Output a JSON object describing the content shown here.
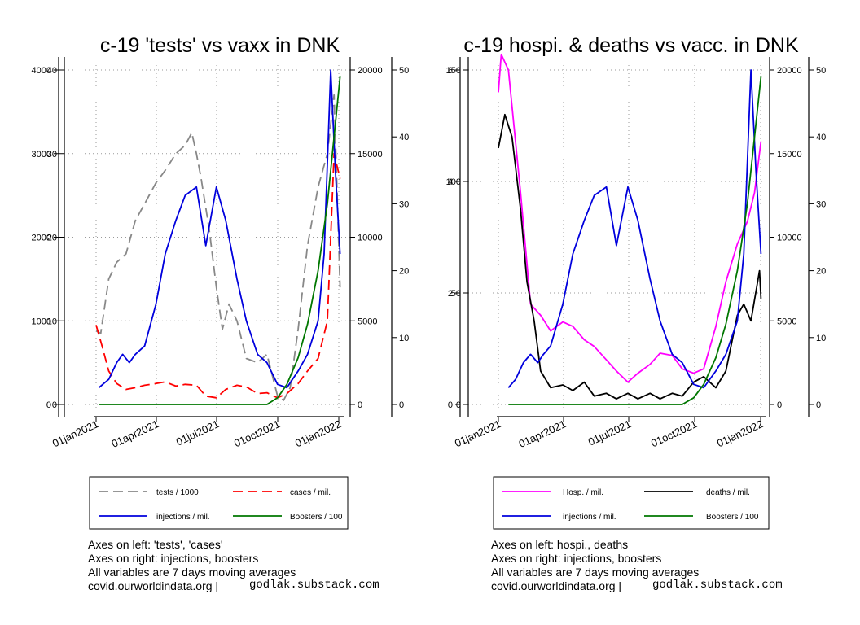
{
  "chart_data": [
    {
      "type": "line",
      "title": "c-19 'tests' vs vaxx in DNK",
      "x_ticks": [
        "01jan2021",
        "01apr2021",
        "01jul2021",
        "01oct2021",
        "01jan2022"
      ],
      "x_range": [
        "2021-01-01",
        "2022-01-06"
      ],
      "grid": true,
      "legend_placement": "bottom",
      "axes": {
        "axis1": {
          "side": "left-outer",
          "range": [
            0,
            4000
          ],
          "ticks": [
            "0",
            "1000",
            "2000",
            "3000",
            "4000"
          ]
        },
        "axis2": {
          "side": "left-inner",
          "range": [
            0,
            40
          ],
          "ticks": [
            "0",
            "10",
            "20",
            "30",
            "40"
          ]
        },
        "axis3": {
          "side": "right-inner",
          "range": [
            0,
            20000
          ],
          "ticks": [
            "0",
            "5000",
            "10000",
            "15000",
            "20000"
          ]
        },
        "axis4": {
          "side": "right-outer",
          "range": [
            0,
            50
          ],
          "ticks": [
            "0",
            "10",
            "20",
            "30",
            "40",
            "50"
          ]
        }
      },
      "series": [
        {
          "name": "tests / 1000",
          "color": "#888888",
          "dash": "dashed",
          "axis": "axis1",
          "x": [
            "2021-01-01",
            "2021-01-08",
            "2021-01-20",
            "2021-02-01",
            "2021-02-15",
            "2021-03-01",
            "2021-03-15",
            "2021-04-01",
            "2021-04-15",
            "2021-05-01",
            "2021-05-15",
            "2021-05-25",
            "2021-06-01",
            "2021-06-08",
            "2021-06-20",
            "2021-07-01",
            "2021-07-10",
            "2021-07-20",
            "2021-08-01",
            "2021-08-15",
            "2021-09-01",
            "2021-09-15",
            "2021-10-01",
            "2021-10-10",
            "2021-10-20",
            "2021-11-01",
            "2021-11-15",
            "2021-12-01",
            "2021-12-15",
            "2021-12-25",
            "2022-01-03"
          ],
          "y": [
            880,
            850,
            1500,
            1700,
            1800,
            2200,
            2400,
            2650,
            2800,
            3000,
            3100,
            3250,
            3000,
            2700,
            2100,
            1400,
            900,
            1200,
            1000,
            550,
            500,
            600,
            100,
            50,
            200,
            900,
            1900,
            2600,
            3000,
            3700,
            1400
          ]
        },
        {
          "name": "cases / mil.",
          "color": "#ff0000",
          "dash": "dashed",
          "axis": "axis2",
          "x": [
            "2021-01-01",
            "2021-01-10",
            "2021-01-20",
            "2021-02-01",
            "2021-02-15",
            "2021-03-01",
            "2021-03-15",
            "2021-04-01",
            "2021-04-15",
            "2021-05-01",
            "2021-05-15",
            "2021-06-01",
            "2021-06-15",
            "2021-07-01",
            "2021-07-15",
            "2021-08-01",
            "2021-08-15",
            "2021-09-01",
            "2021-09-15",
            "2021-10-01",
            "2021-10-15",
            "2021-11-01",
            "2021-11-15",
            "2021-12-01",
            "2021-12-15",
            "2021-12-25",
            "2022-01-03"
          ],
          "y": [
            9.5,
            7,
            4,
            2.5,
            1.8,
            2,
            2.3,
            2.5,
            2.7,
            2.2,
            2.4,
            2.3,
            1,
            0.8,
            1.8,
            2.3,
            2.1,
            1.3,
            1.4,
            0.8,
            1.3,
            2.5,
            4,
            5.5,
            10,
            30,
            27
          ]
        },
        {
          "name": "injections / mil.",
          "color": "#0000dd",
          "dash": "solid",
          "axis": "axis3",
          "x": [
            "2021-01-05",
            "2021-01-20",
            "2021-02-01",
            "2021-02-10",
            "2021-02-20",
            "2021-03-01",
            "2021-03-15",
            "2021-04-01",
            "2021-04-15",
            "2021-05-01",
            "2021-05-15",
            "2021-06-01",
            "2021-06-15",
            "2021-07-01",
            "2021-07-15",
            "2021-08-01",
            "2021-08-15",
            "2021-09-01",
            "2021-09-15",
            "2021-10-01",
            "2021-10-15",
            "2021-11-01",
            "2021-11-15",
            "2021-12-01",
            "2021-12-10",
            "2021-12-20",
            "2021-12-27",
            "2022-01-03"
          ],
          "y": [
            1000,
            1500,
            2500,
            3000,
            2500,
            3000,
            3500,
            6000,
            9000,
            11000,
            12500,
            13000,
            9500,
            13000,
            11000,
            7500,
            5000,
            3000,
            2500,
            1200,
            1000,
            2000,
            3000,
            5000,
            9000,
            20000,
            14000,
            9000
          ]
        },
        {
          "name": "Boosters / 100",
          "color": "#007700",
          "dash": "solid",
          "axis": "axis4",
          "x": [
            "2021-01-05",
            "2021-09-15",
            "2021-10-01",
            "2021-10-15",
            "2021-11-01",
            "2021-11-15",
            "2021-12-01",
            "2021-12-15",
            "2021-12-25",
            "2022-01-03"
          ],
          "y": [
            0,
            0,
            1,
            3,
            7,
            12,
            20,
            30,
            40,
            49
          ]
        }
      ]
    },
    {
      "type": "line",
      "title": "c-19 hospi. & deaths vs vacc. in DNK",
      "x_ticks": [
        "01jan2021",
        "01apr2021",
        "01jul2021",
        "01oct2021",
        "01jan2022"
      ],
      "x_range": [
        "2021-01-01",
        "2022-01-06"
      ],
      "grid": true,
      "legend_placement": "bottom",
      "axes": {
        "axis1": {
          "side": "left-outer",
          "range": [
            0,
            6
          ],
          "ticks": [
            "0",
            "2",
            "4",
            "6"
          ]
        },
        "axis2": {
          "side": "left-inner",
          "range": [
            0,
            150
          ],
          "ticks": [
            "0",
            "50",
            "100",
            "150"
          ]
        },
        "axis3": {
          "side": "right-inner",
          "range": [
            0,
            20000
          ],
          "ticks": [
            "0",
            "5000",
            "10000",
            "15000",
            "20000"
          ]
        },
        "axis4": {
          "side": "right-outer",
          "range": [
            0,
            50
          ],
          "ticks": [
            "0",
            "10",
            "20",
            "30",
            "40",
            "50"
          ]
        }
      },
      "series": [
        {
          "name": "Hosp. / mil.",
          "color": "#ff00ff",
          "dash": "solid",
          "axis": "axis2",
          "x": [
            "2021-01-01",
            "2021-01-05",
            "2021-01-15",
            "2021-02-01",
            "2021-02-15",
            "2021-03-01",
            "2021-03-15",
            "2021-04-01",
            "2021-04-15",
            "2021-05-01",
            "2021-05-15",
            "2021-06-01",
            "2021-06-15",
            "2021-07-01",
            "2021-07-15",
            "2021-08-01",
            "2021-08-15",
            "2021-09-01",
            "2021-09-15",
            "2021-10-01",
            "2021-10-15",
            "2021-11-01",
            "2021-11-15",
            "2021-12-01",
            "2021-12-15",
            "2021-12-25",
            "2022-01-03"
          ],
          "y": [
            140,
            157,
            150,
            95,
            45,
            40,
            33,
            37,
            35,
            29,
            26,
            20,
            15,
            10,
            14,
            18,
            23,
            22,
            16,
            14,
            16,
            35,
            55,
            72,
            82,
            95,
            118
          ]
        },
        {
          "name": "deaths / mil.",
          "color": "#000000",
          "dash": "solid",
          "axis": "axis1",
          "x": [
            "2021-01-01",
            "2021-01-10",
            "2021-01-20",
            "2021-02-01",
            "2021-02-10",
            "2021-02-20",
            "2021-03-01",
            "2021-03-15",
            "2021-04-01",
            "2021-04-15",
            "2021-05-01",
            "2021-05-15",
            "2021-06-01",
            "2021-06-15",
            "2021-07-01",
            "2021-07-15",
            "2021-08-01",
            "2021-08-15",
            "2021-09-01",
            "2021-09-15",
            "2021-10-01",
            "2021-10-15",
            "2021-11-01",
            "2021-11-15",
            "2021-12-01",
            "2021-12-10",
            "2021-12-20",
            "2022-01-01",
            "2022-01-03"
          ],
          "y": [
            4.6,
            5.2,
            4.8,
            3.5,
            2.2,
            1.5,
            0.6,
            0.3,
            0.35,
            0.25,
            0.4,
            0.15,
            0.2,
            0.1,
            0.2,
            0.1,
            0.2,
            0.1,
            0.2,
            0.15,
            0.4,
            0.5,
            0.3,
            0.6,
            1.6,
            1.8,
            1.5,
            2.4,
            1.9
          ]
        },
        {
          "name": "injections / mil.",
          "color": "#0000dd",
          "dash": "solid",
          "axis": "axis3",
          "x": [
            "2021-01-15",
            "2021-01-25",
            "2021-02-05",
            "2021-02-15",
            "2021-02-25",
            "2021-03-05",
            "2021-03-15",
            "2021-04-01",
            "2021-04-15",
            "2021-05-01",
            "2021-05-15",
            "2021-06-01",
            "2021-06-15",
            "2021-07-01",
            "2021-07-15",
            "2021-08-01",
            "2021-08-15",
            "2021-09-01",
            "2021-09-15",
            "2021-10-01",
            "2021-10-15",
            "2021-11-01",
            "2021-11-15",
            "2021-12-01",
            "2021-12-10",
            "2021-12-20",
            "2021-12-27",
            "2022-01-03"
          ],
          "y": [
            1000,
            1500,
            2500,
            3000,
            2500,
            3000,
            3500,
            6000,
            9000,
            11000,
            12500,
            13000,
            9500,
            13000,
            11000,
            7500,
            5000,
            3000,
            2500,
            1200,
            1000,
            2000,
            3000,
            5000,
            9000,
            20000,
            14000,
            9000
          ]
        },
        {
          "name": "Boosters / 100",
          "color": "#007700",
          "dash": "solid",
          "axis": "axis4",
          "x": [
            "2021-01-15",
            "2021-09-15",
            "2021-10-01",
            "2021-10-15",
            "2021-11-01",
            "2021-11-15",
            "2021-12-01",
            "2021-12-15",
            "2021-12-25",
            "2022-01-03"
          ],
          "y": [
            0,
            0,
            1,
            3,
            7,
            12,
            20,
            30,
            40,
            49
          ]
        }
      ]
    }
  ],
  "notes": {
    "left": [
      "Axes on left: 'tests', 'cases'",
      "Axes on right: injections, boosters",
      "All variables are 7 days moving averages",
      "covid.ourworldindata.org |"
    ],
    "right": [
      "Axes on left: hospi., deaths",
      "Axes on right: injections, boosters",
      "All variables are 7 days moving averages",
      "covid.ourworldindata.org |"
    ],
    "substack": "godlak.substack.com"
  }
}
